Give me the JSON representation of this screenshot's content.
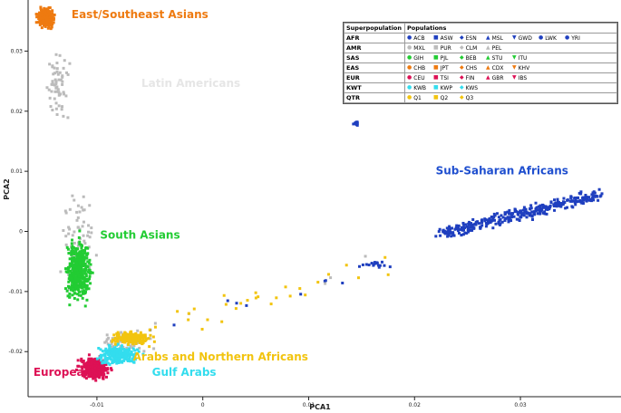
{
  "chart_data": {
    "type": "scatter",
    "xlabel": "PCA1",
    "ylabel": "PCA2",
    "xlim": [
      -0.0165,
      0.0395
    ],
    "ylim": [
      -0.0275,
      0.0385
    ],
    "x_ticks": [
      -0.01,
      0,
      0.01,
      0.02,
      0.03
    ],
    "x_tick_labels": [
      "-0.01",
      "0",
      "0.01",
      "0.02",
      "0.03"
    ],
    "y_ticks": [
      -0.02,
      -0.01,
      0,
      0.01,
      0.02,
      0.03
    ],
    "y_tick_labels": [
      "-0.02",
      "-0.01",
      "0",
      "0.01",
      "0.02",
      "0.03"
    ],
    "grid": false,
    "legend_placement": "top-right",
    "legend_headers": [
      "Superpopulation",
      "Populations"
    ],
    "legend": [
      {
        "superpopulation": "AFR",
        "color": "#1f3fbf",
        "populations": [
          {
            "name": "ACB",
            "marker": "●"
          },
          {
            "name": "ASW",
            "marker": "■"
          },
          {
            "name": "ESN",
            "marker": "◆"
          },
          {
            "name": "MSL",
            "marker": "▲"
          },
          {
            "name": "GWD",
            "marker": "▼"
          },
          {
            "name": "LWK",
            "marker": "●"
          },
          {
            "name": "YRI",
            "marker": "●"
          }
        ]
      },
      {
        "superpopulation": "AMR",
        "color": "#bbbbbb",
        "populations": [
          {
            "name": "MXL",
            "marker": "●"
          },
          {
            "name": "PUR",
            "marker": "■"
          },
          {
            "name": "CLM",
            "marker": "◆"
          },
          {
            "name": "PEL",
            "marker": "▲"
          }
        ]
      },
      {
        "superpopulation": "SAS",
        "color": "#22cc33",
        "populations": [
          {
            "name": "GIH",
            "marker": "●"
          },
          {
            "name": "PJL",
            "marker": "■"
          },
          {
            "name": "BEB",
            "marker": "◆"
          },
          {
            "name": "STU",
            "marker": "▲"
          },
          {
            "name": "ITU",
            "marker": "▼"
          }
        ]
      },
      {
        "superpopulation": "EAS",
        "color": "#ee7a10",
        "populations": [
          {
            "name": "CHB",
            "marker": "●"
          },
          {
            "name": "JPT",
            "marker": "■"
          },
          {
            "name": "CHS",
            "marker": "◆"
          },
          {
            "name": "CDX",
            "marker": "▲"
          },
          {
            "name": "KHV",
            "marker": "▼"
          }
        ]
      },
      {
        "superpopulation": "EUR",
        "color": "#dd1155",
        "populations": [
          {
            "name": "CEU",
            "marker": "●"
          },
          {
            "name": "TSI",
            "marker": "■"
          },
          {
            "name": "FIN",
            "marker": "◆"
          },
          {
            "name": "GBR",
            "marker": "▲"
          },
          {
            "name": "IBS",
            "marker": "▼"
          }
        ]
      },
      {
        "superpopulation": "KWT",
        "color": "#33ddee",
        "populations": [
          {
            "name": "KWB",
            "marker": "●"
          },
          {
            "name": "KWP",
            "marker": "■"
          },
          {
            "name": "KWS",
            "marker": "◆"
          }
        ]
      },
      {
        "superpopulation": "QTR",
        "color": "#f2c40f",
        "populations": [
          {
            "name": "Q1",
            "marker": "●"
          },
          {
            "name": "Q2",
            "marker": "■"
          },
          {
            "name": "Q3",
            "marker": "◆"
          }
        ]
      }
    ],
    "clusters": [
      {
        "name": "EAS",
        "color": "#ee7a10",
        "points": 260,
        "center": [
          -0.0148,
          0.0355
        ],
        "spread": [
          0.0007,
          0.0014
        ]
      },
      {
        "name": "AMR",
        "color": "#bbbbbb",
        "points": 60,
        "center": [
          -0.0138,
          0.024
        ],
        "spread": [
          0.001,
          0.005
        ]
      },
      {
        "name": "AMR",
        "color": "#bbbbbb",
        "points": 70,
        "center": [
          -0.0118,
          -0.002
        ],
        "spread": [
          0.0014,
          0.008
        ]
      },
      {
        "name": "AMR",
        "color": "#bbbbbb",
        "points": 60,
        "center": [
          -0.0075,
          -0.0185
        ],
        "spread": [
          0.0025,
          0.002
        ]
      },
      {
        "name": "SAS",
        "color": "#22cc33",
        "points": 420,
        "center": [
          -0.0117,
          -0.0065
        ],
        "spread": [
          0.001,
          0.0045
        ]
      },
      {
        "name": "EUR",
        "color": "#dd1155",
        "points": 380,
        "center": [
          -0.0103,
          -0.0228
        ],
        "spread": [
          0.0012,
          0.0016
        ]
      },
      {
        "name": "KWT",
        "color": "#33ddee",
        "points": 220,
        "center": [
          -0.008,
          -0.0205
        ],
        "spread": [
          0.0018,
          0.0015
        ]
      },
      {
        "name": "QTR",
        "color": "#f2c40f",
        "points": 200,
        "center": [
          -0.0068,
          -0.0178
        ],
        "spread": [
          0.0015,
          0.0009
        ]
      },
      {
        "name": "AFR",
        "color": "#1f3fbf",
        "points": 340,
        "center": [
          0.0335,
          0.0045
        ],
        "spread": [
          0.003,
          0.0012
        ]
      },
      {
        "name": "AFR",
        "color": "#1f3fbf",
        "points": 14,
        "center": [
          0.0145,
          0.018
        ],
        "spread": [
          0.0002,
          0.0003
        ]
      },
      {
        "name": "AFR",
        "color": "#1f3fbf",
        "points": 16,
        "center": [
          0.016,
          -0.0055
        ],
        "spread": [
          0.0015,
          0.0005
        ]
      }
    ],
    "annotations": [
      {
        "text": "East/Southeast Asians",
        "color": "#ee7a10",
        "x": -0.0124,
        "y": 0.0355
      },
      {
        "text": "Latin Americans",
        "color": "#e6e6e6",
        "x": -0.0058,
        "y": 0.024
      },
      {
        "text": "Sub-Saharan Africans",
        "color": "#1f4fcf",
        "x": 0.022,
        "y": 0.0095
      },
      {
        "text": "South Asians",
        "color": "#22cc33",
        "x": -0.0097,
        "y": -0.0012
      },
      {
        "text": "Arabs and Northern Africans",
        "color": "#f2c40f",
        "x": -0.0066,
        "y": -0.0215
      },
      {
        "text": "Gulf Arabs",
        "color": "#33ddee",
        "x": -0.0048,
        "y": -0.024
      },
      {
        "text": "Europeans",
        "color": "#dd1155",
        "x": -0.016,
        "y": -0.024
      }
    ]
  }
}
